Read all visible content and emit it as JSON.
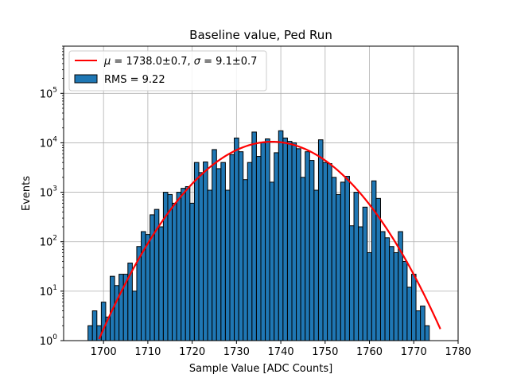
{
  "chart_data": {
    "type": "bar",
    "title": "Baseline value, Ped Run",
    "xlabel": "Sample Value [ADC Counts]",
    "ylabel": "Events",
    "xlim": [
      1691,
      1780
    ],
    "ylim": [
      1,
      900000
    ],
    "yscale": "log",
    "grid": true,
    "legend_position": "top-left",
    "bin_width": 1,
    "xticks": [
      1700,
      1710,
      1720,
      1730,
      1740,
      1750,
      1760,
      1770,
      1780
    ],
    "yticks": [
      {
        "value": 1,
        "label_base": "10",
        "label_exp": "0"
      },
      {
        "value": 10,
        "label_base": "10",
        "label_exp": "1"
      },
      {
        "value": 100,
        "label_base": "10",
        "label_exp": "2"
      },
      {
        "value": 1000,
        "label_base": "10",
        "label_exp": "3"
      },
      {
        "value": 10000,
        "label_base": "10",
        "label_exp": "4"
      },
      {
        "value": 100000,
        "label_base": "10",
        "label_exp": "5"
      }
    ],
    "histogram": {
      "name": "RMS = 9.22",
      "color": "#1f77b4",
      "edge_color": "#000000",
      "x": [
        1697,
        1698,
        1699,
        1700,
        1701,
        1702,
        1703,
        1704,
        1705,
        1706,
        1707,
        1708,
        1709,
        1710,
        1711,
        1712,
        1713,
        1714,
        1715,
        1716,
        1717,
        1718,
        1719,
        1720,
        1721,
        1722,
        1723,
        1724,
        1725,
        1726,
        1727,
        1728,
        1729,
        1730,
        1731,
        1732,
        1733,
        1734,
        1735,
        1736,
        1737,
        1738,
        1739,
        1740,
        1741,
        1742,
        1743,
        1744,
        1745,
        1746,
        1747,
        1748,
        1749,
        1750,
        1751,
        1752,
        1753,
        1754,
        1755,
        1756,
        1757,
        1758,
        1759,
        1760,
        1761,
        1762,
        1763,
        1764,
        1765,
        1766,
        1767,
        1768,
        1769,
        1770,
        1771,
        1772,
        1773
      ],
      "values": [
        2,
        4,
        2,
        6,
        3,
        20,
        13,
        22,
        22,
        37,
        10,
        80,
        160,
        140,
        350,
        450,
        200,
        1000,
        900,
        600,
        1000,
        1200,
        1300,
        600,
        4000,
        2500,
        4100,
        1100,
        7300,
        3000,
        4000,
        1100,
        5800,
        12500,
        6600,
        1800,
        4000,
        16500,
        5300,
        10000,
        12000,
        1600,
        6300,
        17500,
        12500,
        10700,
        10000,
        7600,
        2000,
        6600,
        4400,
        1100,
        11500,
        4000,
        3800,
        2000,
        900,
        1600,
        2100,
        210,
        1000,
        200,
        500,
        60,
        1700,
        750,
        160,
        120,
        80,
        60,
        160,
        40,
        12,
        22,
        4,
        5,
        2
      ]
    },
    "fit": {
      "name": "$\\mu = 1738.0{\\pm}0.7$, $\\sigma = 9.1{\\pm}0.7$",
      "label_mu_symbol": "μ",
      "label_mu_text": " = 1738.0±0.7, ",
      "label_sigma_symbol": "σ",
      "label_sigma_text": " = 9.1±0.7",
      "color": "#ff0000",
      "amplitude": 10500,
      "mean": 1738.0,
      "sigma": 9.1,
      "x_range": [
        1697,
        1776
      ]
    },
    "legend": {
      "fit_label": "μ = 1738.0±0.7, σ = 9.1±0.7",
      "hist_label": "RMS = 9.22"
    }
  }
}
